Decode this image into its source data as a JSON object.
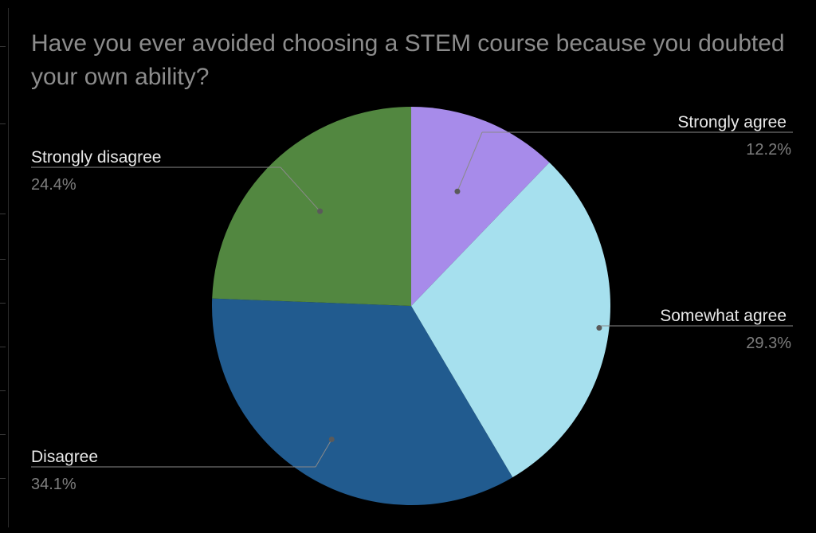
{
  "chart_data": {
    "type": "pie",
    "title": "Have you ever avoided choosing a STEM course because you doubted your own ability?",
    "slices": [
      {
        "label": "Strongly agree",
        "value": 12.2,
        "value_label": "12.2%",
        "color": "#a78bea"
      },
      {
        "label": "Somewhat agree",
        "value": 29.3,
        "value_label": "29.3%",
        "color": "#a6e0ee"
      },
      {
        "label": "Disagree",
        "value": 34.1,
        "value_label": "34.1%",
        "color": "#215b8f"
      },
      {
        "label": "Strongly disagree",
        "value": 24.4,
        "value_label": "24.4%",
        "color": "#528740"
      }
    ],
    "start_angle": "12 o'clock",
    "direction": "clockwise"
  },
  "colors": {
    "background": "#000000",
    "title": "#8c8c8c",
    "label": "#e8e8e8",
    "percent": "#7e7e7e",
    "leader": "#8a8a8a"
  }
}
